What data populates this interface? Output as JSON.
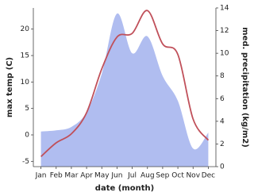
{
  "chart_data": {
    "type": "area-line",
    "x_label": "date (month)",
    "y_label": "max temp (C)",
    "y2_label": "med. precipitation (kg/m2)",
    "categories": [
      "Jan",
      "Feb",
      "Mar",
      "Apr",
      "May",
      "Jun",
      "Jul",
      "Aug",
      "Sep",
      "Oct",
      "Nov",
      "Dec"
    ],
    "series": [
      {
        "color": "#c0505a",
        "values": [
          -4.1,
          -1.5,
          0.2,
          4.2,
          12.5,
          18.5,
          19.2,
          23.5,
          17.2,
          15.2,
          3.0,
          -1.0
        ]
      },
      {
        "color": "#b0bdf0",
        "axis": "y2",
        "values": [
          3.1,
          3.2,
          3.5,
          4.8,
          8.2,
          13.5,
          10.0,
          11.5,
          8.0,
          5.8,
          1.6,
          3.0
        ]
      }
    ],
    "ylim": [
      -6,
      24
    ],
    "yticks": [
      -5,
      0,
      5,
      10,
      15,
      20
    ],
    "y2lim": [
      0,
      14
    ],
    "y2ticks": [
      0,
      2,
      4,
      6,
      8,
      10,
      12,
      14
    ]
  }
}
